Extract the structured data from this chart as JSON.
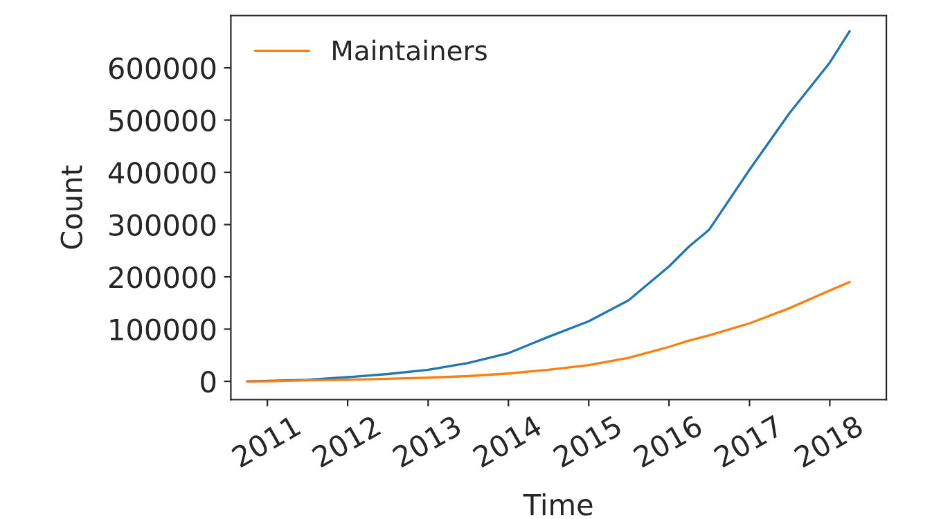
{
  "chart_data": {
    "type": "line",
    "xlabel": "Time",
    "ylabel": "Count",
    "x": [
      "2010-10",
      "2011-01",
      "2011-07",
      "2012-01",
      "2012-07",
      "2013-01",
      "2013-07",
      "2014-01",
      "2014-07",
      "2015-01",
      "2015-07",
      "2016-01",
      "2016-04",
      "2016-07",
      "2017-01",
      "2017-07",
      "2018-01",
      "2018-04"
    ],
    "series": [
      {
        "color": "#1f77b4",
        "values": [
          0,
          null,
          3000,
          8000,
          14000,
          22000,
          35000,
          54000,
          85000,
          115000,
          155000,
          220000,
          258000,
          290000,
          405000,
          513000,
          610000,
          670000
        ]
      },
      {
        "name": "Maintainers",
        "color": "#ff7f0e",
        "values": [
          0,
          0,
          2000,
          3000,
          5000,
          7000,
          10000,
          15000,
          22000,
          31000,
          45000,
          66000,
          78000,
          88000,
          111000,
          140000,
          174000,
          190000
        ]
      }
    ],
    "xlim": [
      "2010-07-19",
      "2018-09-15"
    ],
    "xticks": [
      {
        "value": "2011-01-01",
        "label": "2011"
      },
      {
        "value": "2012-01-01",
        "label": "2012"
      },
      {
        "value": "2013-01-01",
        "label": "2013"
      },
      {
        "value": "2014-01-01",
        "label": "2014"
      },
      {
        "value": "2015-01-01",
        "label": "2015"
      },
      {
        "value": "2016-01-01",
        "label": "2016"
      },
      {
        "value": "2017-01-01",
        "label": "2017"
      },
      {
        "value": "2018-01-01",
        "label": "2018"
      }
    ],
    "ylim": [
      -35000,
      700000
    ],
    "yticks": [
      0,
      100000,
      200000,
      300000,
      400000,
      500000,
      600000
    ],
    "legend": "top left",
    "grid": false,
    "marker": "none",
    "line_style": "solid"
  }
}
